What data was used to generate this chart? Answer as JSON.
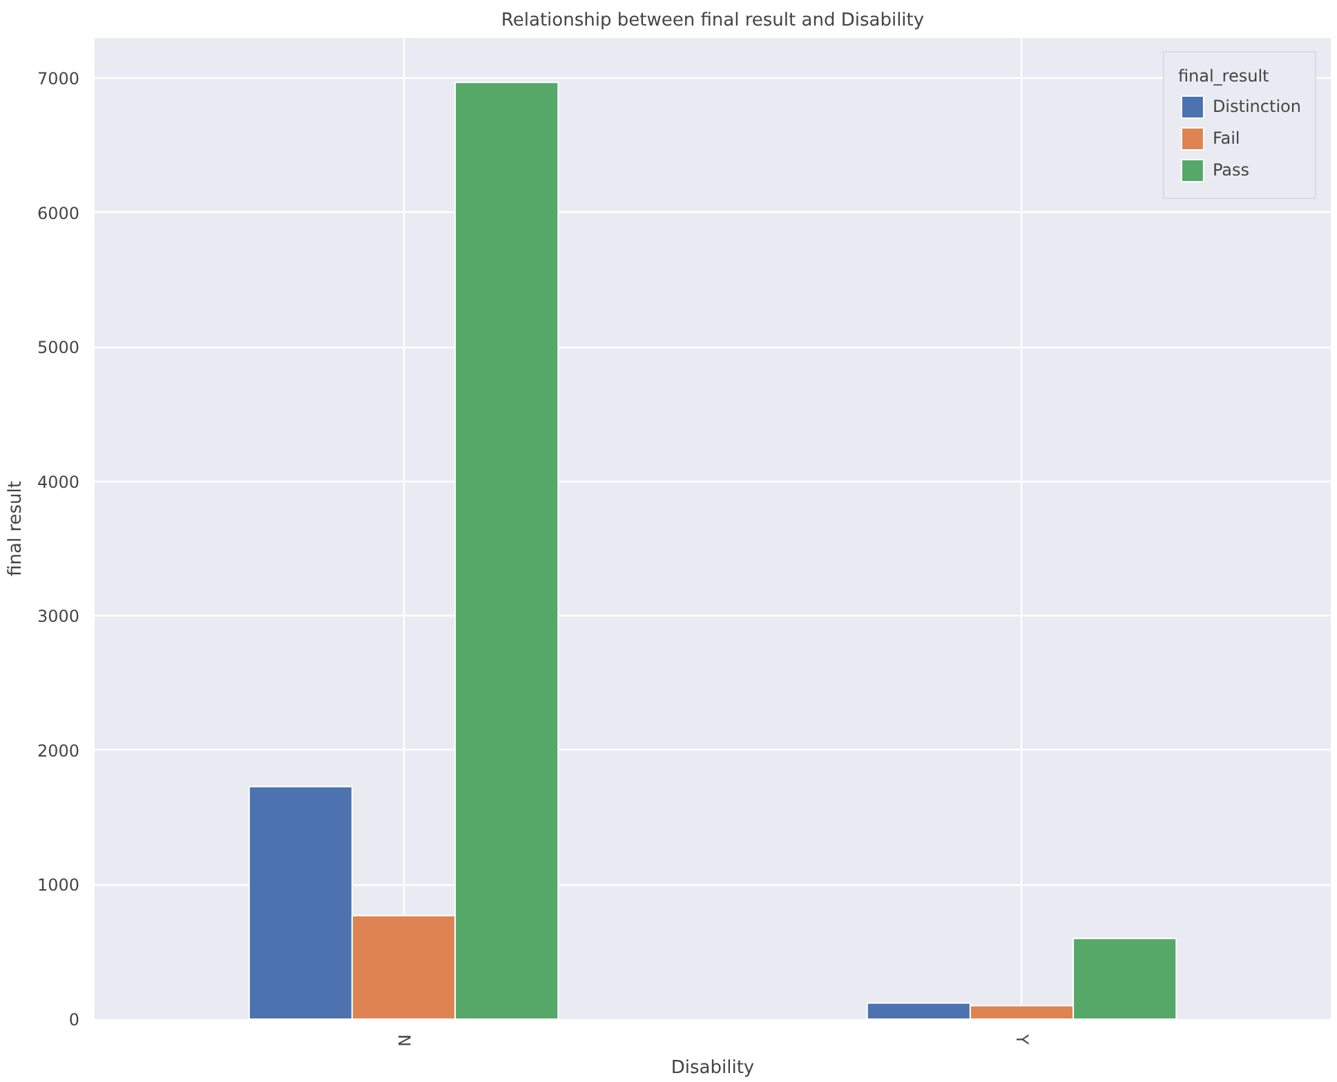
{
  "chart_data": {
    "type": "bar",
    "title": "Relationship between final result and Disability",
    "xlabel": "Disability",
    "ylabel": "final result",
    "legend_title": "final_result",
    "categories": [
      "N",
      "Y"
    ],
    "series": [
      {
        "name": "Distinction",
        "color": "#4c72b0",
        "values": [
          1730,
          120
        ]
      },
      {
        "name": "Fail",
        "color": "#dd8452",
        "values": [
          770,
          100
        ]
      },
      {
        "name": "Pass",
        "color": "#55a868",
        "values": [
          6970,
          600
        ]
      }
    ],
    "ylim": [
      0,
      7300
    ],
    "yticks": [
      0,
      1000,
      2000,
      3000,
      4000,
      5000,
      6000,
      7000
    ],
    "grid": true,
    "legend": "top right"
  }
}
